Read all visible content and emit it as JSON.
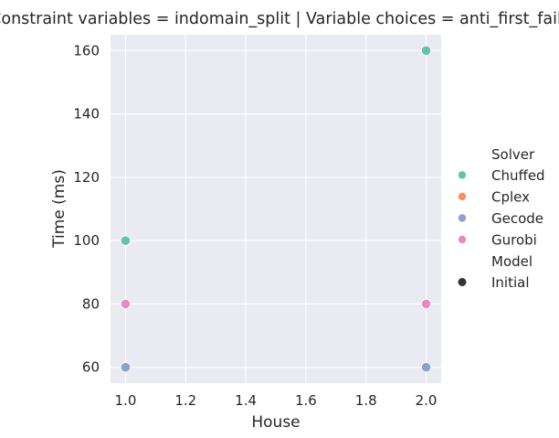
{
  "chart_data": {
    "type": "scatter",
    "title": "Constraint variables = indomain_split | Variable choices = anti_first_fail",
    "xlabel": "House",
    "ylabel": "Time (ms)",
    "xlim": [
      0.95,
      2.05
    ],
    "ylim": [
      55,
      165
    ],
    "xticks": [
      1.0,
      1.2,
      1.4,
      1.6,
      1.8,
      2.0
    ],
    "xtick_labels": [
      "1.0",
      "1.2",
      "1.4",
      "1.6",
      "1.8",
      "2.0"
    ],
    "yticks": [
      60,
      80,
      100,
      120,
      140,
      160
    ],
    "ytick_labels": [
      "60",
      "80",
      "100",
      "120",
      "140",
      "160"
    ],
    "grid": true,
    "legend_position": "right",
    "series": [
      {
        "name": "Chuffed",
        "color": "#66c2a5",
        "x": [
          1.0,
          2.0
        ],
        "y": [
          100,
          160
        ]
      },
      {
        "name": "Cplex",
        "color": "#fc8d62",
        "x": [
          1.0,
          2.0
        ],
        "y": [
          80,
          80
        ]
      },
      {
        "name": "Gecode",
        "color": "#8da0cb",
        "x": [
          1.0,
          2.0
        ],
        "y": [
          60,
          60
        ]
      },
      {
        "name": "Gurobi",
        "color": "#e78ac3",
        "x": [
          1.0,
          2.0
        ],
        "y": [
          80,
          80
        ]
      }
    ],
    "legend": {
      "solver_title": "Solver",
      "model_title": "Model",
      "model_entries": [
        {
          "name": "Initial",
          "color": "#333333"
        }
      ]
    }
  },
  "colors": {
    "plot_background": "#eaeaf2",
    "grid": "#ffffff",
    "text": "#262626"
  }
}
